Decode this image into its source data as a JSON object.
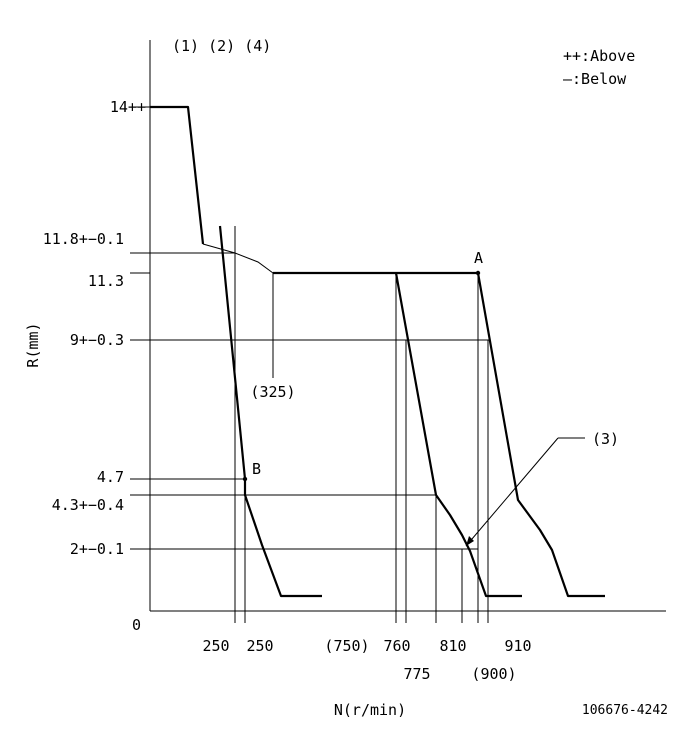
{
  "header": {
    "notes": "(1) (2) (4)"
  },
  "legend": {
    "above": "++:Above",
    "below": "—:Below"
  },
  "axes": {
    "y_label": "R(mm)",
    "x_label": "N(r/min)",
    "origin": "0"
  },
  "y_ticks": {
    "t14": "14++",
    "t11_8": "11.8+−0.1",
    "t11_3": "11.3",
    "t9": "9+−0.3",
    "t4_7": "4.7",
    "t4_3": "4.3+−0.4",
    "t2": "2+−0.1"
  },
  "x_ticks": {
    "a250": "250",
    "b250": "250",
    "x750": "(750)",
    "x760": "760",
    "x775": "775",
    "x810": "810",
    "x900": "(900)",
    "x910": "910"
  },
  "annotations": {
    "p325": "(325)",
    "point_a": "A",
    "point_b": "B",
    "note3": "(3)"
  },
  "footer": {
    "code": "106676-4242"
  }
}
